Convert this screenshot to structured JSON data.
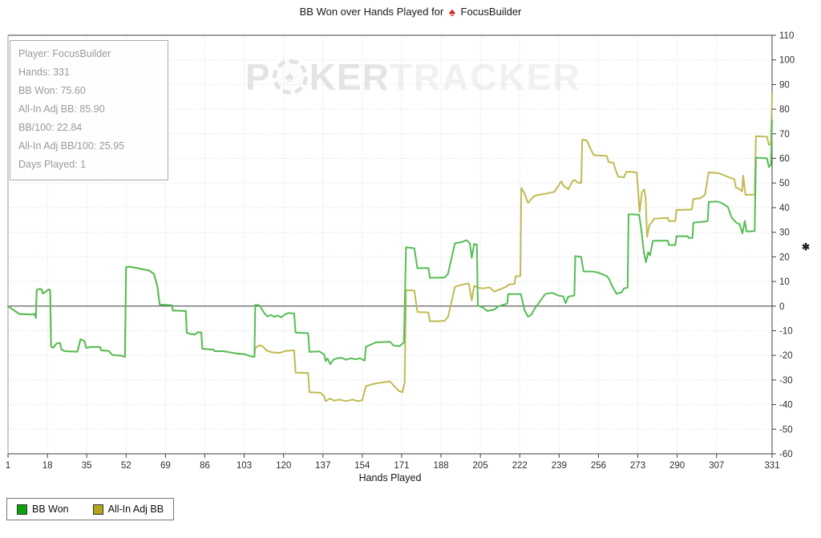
{
  "title": {
    "prefix": "BB Won over Hands Played for",
    "player": "FocusBuilder"
  },
  "icons": {
    "spade": "♠",
    "axis_note": "✱",
    "watermark_chip": "poker-chip-spade"
  },
  "watermark": {
    "p1": "P",
    "p2": "KER",
    "p3": "TRACKER"
  },
  "stats": {
    "lines": [
      "Player: FocusBuilder",
      "Hands: 331",
      "BB Won: 75.60",
      "All-In Adj BB: 85.90",
      "BB/100: 22.84",
      "All-In Adj BB/100: 25.95",
      "Days Played: 1"
    ]
  },
  "legend": {
    "items": [
      {
        "label": "BB Won",
        "color": "#0da10d"
      },
      {
        "label": "All-In Adj BB",
        "color": "#b1a51a"
      }
    ]
  },
  "chart_data": {
    "type": "line",
    "title": "BB Won over Hands Played for FocusBuilder",
    "xlabel": "Hands Played",
    "ylabel": "",
    "xlim": [
      1,
      331
    ],
    "ylim": [
      -60,
      110
    ],
    "grid": true,
    "legend_position": "bottom-left",
    "x_ticks": [
      1,
      18,
      35,
      52,
      69,
      86,
      103,
      120,
      137,
      154,
      171,
      188,
      205,
      222,
      239,
      256,
      273,
      290,
      307,
      331
    ],
    "y_ticks": [
      110,
      100,
      90,
      80,
      70,
      60,
      50,
      40,
      30,
      20,
      10,
      0,
      -10,
      -20,
      -30,
      -40,
      -50,
      -60
    ],
    "common_points": [
      [
        1,
        0
      ],
      [
        2,
        -0.7
      ],
      [
        4,
        -2
      ],
      [
        6,
        -3.2
      ],
      [
        11,
        -3.4
      ],
      [
        12.5,
        -3.2
      ],
      [
        13,
        -4.8
      ],
      [
        13.4,
        6.5
      ],
      [
        14.5,
        7
      ],
      [
        15.5,
        6.8
      ],
      [
        16,
        5.2
      ],
      [
        17,
        5.6
      ],
      [
        18.5,
        6.8
      ],
      [
        19.2,
        6.5
      ],
      [
        19.6,
        -16.5
      ],
      [
        20.5,
        -16.9
      ],
      [
        22,
        -15.2
      ],
      [
        23.5,
        -15
      ],
      [
        24,
        -17.5
      ],
      [
        25.5,
        -18.3
      ],
      [
        31,
        -18.5
      ],
      [
        32.3,
        -13.5
      ],
      [
        34,
        -14.2
      ],
      [
        34.8,
        -17
      ],
      [
        37,
        -16.6
      ],
      [
        40.8,
        -16.6
      ],
      [
        41.2,
        -18
      ],
      [
        44.5,
        -18.2
      ],
      [
        46,
        -19.8
      ],
      [
        50,
        -20.2
      ],
      [
        51.5,
        -20.6
      ],
      [
        52,
        15.8
      ],
      [
        53.5,
        16
      ],
      [
        56,
        15.6
      ],
      [
        58,
        15.2
      ],
      [
        60,
        14.8
      ],
      [
        62,
        14.4
      ],
      [
        64,
        13.1
      ],
      [
        65.5,
        8
      ],
      [
        66.5,
        0.6
      ],
      [
        71.8,
        0.3
      ],
      [
        72.2,
        -1.8
      ],
      [
        77.8,
        -2
      ],
      [
        78.2,
        -10.8
      ],
      [
        79.5,
        -11.2
      ],
      [
        81.5,
        -11.6
      ],
      [
        83,
        -10.6
      ],
      [
        84.5,
        -10.8
      ],
      [
        84.9,
        -17.3
      ],
      [
        87,
        -17.5
      ],
      [
        89.8,
        -17.7
      ],
      [
        90.2,
        -18.3
      ],
      [
        94,
        -18.3
      ],
      [
        97.5,
        -18.9
      ],
      [
        100,
        -19.3
      ],
      [
        103,
        -19.5
      ],
      [
        105.5,
        -20.3
      ],
      [
        107.4,
        -20.6
      ]
    ],
    "series": [
      {
        "name": "BB Won",
        "color": "#55bd55",
        "include_common": true,
        "points": [
          [
            107.8,
            0.5
          ],
          [
            109.5,
            0.3
          ],
          [
            110.5,
            -1
          ],
          [
            111.5,
            -2.6
          ],
          [
            113,
            -4.2
          ],
          [
            114.5,
            -3.6
          ],
          [
            116,
            -4.4
          ],
          [
            117.5,
            -3.8
          ],
          [
            119,
            -4.6
          ],
          [
            120.5,
            -3.4
          ],
          [
            122,
            -2.8
          ],
          [
            124.6,
            -3
          ],
          [
            125.2,
            -10.8
          ],
          [
            130.6,
            -11
          ],
          [
            131.2,
            -18.6
          ],
          [
            135.5,
            -18.4
          ],
          [
            136.5,
            -19
          ],
          [
            137.5,
            -19.6
          ],
          [
            138.2,
            -22.4
          ],
          [
            139,
            -21.2
          ],
          [
            140.2,
            -23.6
          ],
          [
            141.5,
            -21.8
          ],
          [
            143,
            -21.2
          ],
          [
            145,
            -21
          ],
          [
            147,
            -21.8
          ],
          [
            149,
            -21.2
          ],
          [
            151,
            -21.6
          ],
          [
            153,
            -21.2
          ],
          [
            155,
            -22.2
          ],
          [
            155.6,
            -16.5
          ],
          [
            158,
            -15.5
          ],
          [
            160,
            -14.7
          ],
          [
            166,
            -14.5
          ],
          [
            167.5,
            -16
          ],
          [
            170,
            -16.3
          ],
          [
            172,
            -14.8
          ],
          [
            172.9,
            23.9
          ],
          [
            176.5,
            23.5
          ],
          [
            177.8,
            15.4
          ],
          [
            182.6,
            15.5
          ],
          [
            183.2,
            11.5
          ],
          [
            189.5,
            11.6
          ],
          [
            191,
            13
          ],
          [
            194,
            25.5
          ],
          [
            197,
            26
          ],
          [
            199,
            26.8
          ],
          [
            200.5,
            25.5
          ],
          [
            201.3,
            19.6
          ],
          [
            202.3,
            25.2
          ],
          [
            203.5,
            25
          ],
          [
            203.9,
            0.2
          ],
          [
            206,
            -0.5
          ],
          [
            208,
            -2
          ],
          [
            211,
            -1.4
          ],
          [
            213,
            0
          ],
          [
            214.5,
            0.4
          ],
          [
            216.6,
            1
          ],
          [
            217,
            4.9
          ],
          [
            222.5,
            4.9
          ],
          [
            224,
            -1.5
          ],
          [
            225.6,
            -4.3
          ],
          [
            227,
            -3.5
          ],
          [
            228.5,
            -1
          ],
          [
            229.5,
            0.3
          ],
          [
            233,
            4.9
          ],
          [
            236,
            5.4
          ],
          [
            239,
            4.2
          ],
          [
            240.8,
            4
          ],
          [
            241.8,
            1.2
          ],
          [
            243,
            3.9
          ],
          [
            245.6,
            4.3
          ],
          [
            246,
            20.3
          ],
          [
            248.5,
            20
          ],
          [
            249.6,
            14.1
          ],
          [
            254,
            14
          ],
          [
            256,
            13.6
          ],
          [
            259.6,
            12.2
          ],
          [
            260.6,
            11
          ],
          [
            262,
            8
          ],
          [
            263.8,
            5
          ],
          [
            266,
            5.6
          ],
          [
            267,
            7.2
          ],
          [
            268.6,
            7.5
          ],
          [
            269,
            37.3
          ],
          [
            273.6,
            37.1
          ],
          [
            274.6,
            30.4
          ],
          [
            275.6,
            22
          ],
          [
            276.5,
            17.8
          ],
          [
            277.5,
            21.9
          ],
          [
            278.3,
            20.6
          ],
          [
            279.5,
            26.5
          ],
          [
            286,
            26.6
          ],
          [
            286.5,
            24.8
          ],
          [
            289.2,
            24.8
          ],
          [
            289.7,
            28.4
          ],
          [
            294.5,
            28.4
          ],
          [
            295,
            27.7
          ],
          [
            296.6,
            27.7
          ],
          [
            297,
            33.9
          ],
          [
            302.6,
            34.4
          ],
          [
            303.2,
            34.6
          ],
          [
            303.6,
            42.3
          ],
          [
            307,
            42.5
          ],
          [
            309,
            42
          ],
          [
            311.9,
            40.3
          ],
          [
            313.5,
            36
          ],
          [
            315.4,
            34
          ],
          [
            317,
            33.2
          ],
          [
            318.2,
            29.5
          ],
          [
            319.2,
            34.6
          ],
          [
            320,
            30.3
          ],
          [
            323.5,
            30.5
          ],
          [
            324,
            60.3
          ],
          [
            328.8,
            60
          ],
          [
            329.6,
            56.5
          ],
          [
            330.5,
            57.5
          ],
          [
            331,
            75.6
          ]
        ]
      },
      {
        "name": "All-In Adj BB",
        "color": "#c0ba52",
        "include_common": true,
        "points": [
          [
            107.8,
            -17
          ],
          [
            109.5,
            -15.9
          ],
          [
            111,
            -16.3
          ],
          [
            112.5,
            -18
          ],
          [
            115,
            -18.8
          ],
          [
            118.5,
            -19
          ],
          [
            121,
            -18.2
          ],
          [
            124.6,
            -18
          ],
          [
            125.2,
            -27
          ],
          [
            130.6,
            -27.2
          ],
          [
            131.2,
            -35
          ],
          [
            136,
            -35.2
          ],
          [
            137.5,
            -36.6
          ],
          [
            138.2,
            -38.6
          ],
          [
            140,
            -37.6
          ],
          [
            142,
            -38.4
          ],
          [
            144,
            -38
          ],
          [
            147,
            -38.6
          ],
          [
            150,
            -38
          ],
          [
            152,
            -38.6
          ],
          [
            154,
            -38.2
          ],
          [
            155.6,
            -32.5
          ],
          [
            158,
            -31.8
          ],
          [
            161,
            -31.2
          ],
          [
            166,
            -30.6
          ],
          [
            168,
            -32.7
          ],
          [
            170,
            -34.6
          ],
          [
            171.3,
            -35
          ],
          [
            172.3,
            -31.3
          ],
          [
            172.9,
            6.5
          ],
          [
            176.5,
            6.3
          ],
          [
            177.8,
            -2.4
          ],
          [
            182.6,
            -2.6
          ],
          [
            183.2,
            -6.2
          ],
          [
            189.5,
            -6
          ],
          [
            191,
            -4.5
          ],
          [
            194,
            7.8
          ],
          [
            197.5,
            8.8
          ],
          [
            200,
            9.2
          ],
          [
            201.3,
            2.3
          ],
          [
            202.3,
            8.2
          ],
          [
            203.9,
            7.5
          ],
          [
            206,
            7.2
          ],
          [
            209,
            7.6
          ],
          [
            211,
            5.9
          ],
          [
            214,
            7
          ],
          [
            216,
            7.8
          ],
          [
            217.5,
            8.8
          ],
          [
            219.8,
            9
          ],
          [
            220.2,
            12.1
          ],
          [
            222.3,
            12.2
          ],
          [
            222.7,
            48
          ],
          [
            224,
            45.8
          ],
          [
            225.6,
            41.9
          ],
          [
            228,
            44.5
          ],
          [
            230,
            45.2
          ],
          [
            233,
            45.6
          ],
          [
            237,
            46.4
          ],
          [
            240,
            50.7
          ],
          [
            241,
            48.7
          ],
          [
            242.3,
            48
          ],
          [
            243,
            47.4
          ],
          [
            244.6,
            50.5
          ],
          [
            245.6,
            51.3
          ],
          [
            247,
            50.2
          ],
          [
            248.6,
            50
          ],
          [
            249,
            67.6
          ],
          [
            251,
            67.3
          ],
          [
            252.5,
            64
          ],
          [
            254,
            61.3
          ],
          [
            259.6,
            61
          ],
          [
            260.4,
            58.5
          ],
          [
            262.5,
            58.2
          ],
          [
            263.5,
            55
          ],
          [
            264.5,
            52.6
          ],
          [
            267,
            52.3
          ],
          [
            268,
            54.5
          ],
          [
            269.6,
            54.6
          ],
          [
            272.6,
            54.2
          ],
          [
            273.8,
            38.2
          ],
          [
            274.8,
            46.4
          ],
          [
            275.8,
            47.4
          ],
          [
            276.4,
            44
          ],
          [
            277,
            28.1
          ],
          [
            278,
            32.9
          ],
          [
            279,
            33.9
          ],
          [
            280,
            35.5
          ],
          [
            286,
            35.8
          ],
          [
            286.5,
            34.5
          ],
          [
            289.2,
            34.5
          ],
          [
            289.7,
            39
          ],
          [
            296.3,
            39.2
          ],
          [
            297,
            43.5
          ],
          [
            300,
            43.8
          ],
          [
            302,
            45.2
          ],
          [
            303.6,
            54.3
          ],
          [
            308,
            54
          ],
          [
            311.9,
            52.5
          ],
          [
            314.7,
            51.5
          ],
          [
            315.4,
            48.2
          ],
          [
            317,
            47.5
          ],
          [
            318.1,
            46.6
          ],
          [
            318.5,
            53
          ],
          [
            319.5,
            45.2
          ],
          [
            323.5,
            45.3
          ],
          [
            324,
            69
          ],
          [
            328.8,
            68.8
          ],
          [
            329.6,
            65.5
          ],
          [
            330.5,
            66
          ],
          [
            331,
            85.9
          ]
        ]
      }
    ]
  }
}
